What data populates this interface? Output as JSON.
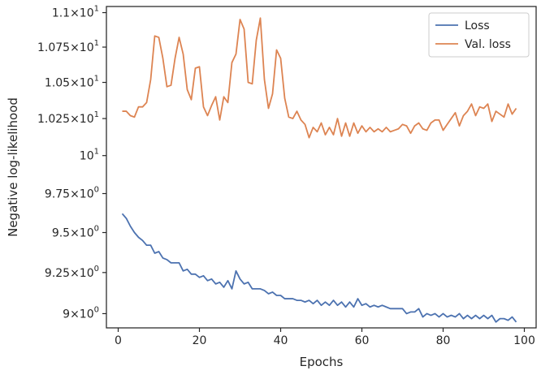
{
  "chart_data": {
    "type": "line",
    "title": "",
    "xlabel": "Epochs",
    "ylabel": "Negative log-likelihood",
    "xlim": [
      -2.9,
      102.9
    ],
    "ylim": [
      8.915,
      11.045
    ],
    "yscale": "log",
    "grid": false,
    "legend_position": "top-right",
    "x_ticks": [
      0,
      20,
      40,
      60,
      80,
      100
    ],
    "y_ticks": [
      {
        "value": 9.0,
        "mantissa": "9",
        "base": "10",
        "exp": "0"
      },
      {
        "value": 9.25,
        "mantissa": "9.25",
        "base": "10",
        "exp": "0"
      },
      {
        "value": 9.5,
        "mantissa": "9.5",
        "base": "10",
        "exp": "0"
      },
      {
        "value": 9.75,
        "mantissa": "9.75",
        "base": "10",
        "exp": "0"
      },
      {
        "value": 10.0,
        "mantissa": "",
        "base": "10",
        "exp": "1"
      },
      {
        "value": 10.25,
        "mantissa": "1.025",
        "base": "10",
        "exp": "1"
      },
      {
        "value": 10.5,
        "mantissa": "1.05",
        "base": "10",
        "exp": "1"
      },
      {
        "value": 10.75,
        "mantissa": "1.075",
        "base": "10",
        "exp": "1"
      },
      {
        "value": 11.0,
        "mantissa": "1.1",
        "base": "10",
        "exp": "1"
      }
    ],
    "series": [
      {
        "name": "Loss",
        "color": "#4c72b0",
        "x": [
          1,
          2,
          3,
          4,
          5,
          6,
          7,
          8,
          9,
          10,
          11,
          12,
          13,
          14,
          15,
          16,
          17,
          18,
          19,
          20,
          21,
          22,
          23,
          24,
          25,
          26,
          27,
          28,
          29,
          30,
          31,
          32,
          33,
          34,
          35,
          36,
          37,
          38,
          39,
          40,
          41,
          42,
          43,
          44,
          45,
          46,
          47,
          48,
          49,
          50,
          51,
          52,
          53,
          54,
          55,
          56,
          57,
          58,
          59,
          60,
          61,
          62,
          63,
          64,
          65,
          66,
          67,
          68,
          69,
          70,
          71,
          72,
          73,
          74,
          75,
          76,
          77,
          78,
          79,
          80,
          81,
          82,
          83,
          84,
          85,
          86,
          87,
          88,
          89,
          90,
          91,
          92,
          93,
          94,
          95,
          96,
          97,
          98
        ],
        "values": [
          9.62,
          9.59,
          9.54,
          9.5,
          9.47,
          9.45,
          9.42,
          9.42,
          9.37,
          9.38,
          9.34,
          9.33,
          9.31,
          9.31,
          9.31,
          9.26,
          9.27,
          9.24,
          9.24,
          9.22,
          9.23,
          9.2,
          9.21,
          9.18,
          9.19,
          9.16,
          9.2,
          9.15,
          9.26,
          9.21,
          9.18,
          9.19,
          9.15,
          9.15,
          9.15,
          9.14,
          9.12,
          9.13,
          9.11,
          9.11,
          9.09,
          9.09,
          9.09,
          9.08,
          9.08,
          9.07,
          9.08,
          9.06,
          9.08,
          9.05,
          9.07,
          9.05,
          9.08,
          9.05,
          9.07,
          9.04,
          9.07,
          9.04,
          9.09,
          9.05,
          9.06,
          9.04,
          9.05,
          9.04,
          9.05,
          9.04,
          9.03,
          9.03,
          9.03,
          9.03,
          9.0,
          9.01,
          9.01,
          9.03,
          8.98,
          9.0,
          8.99,
          9.0,
          8.98,
          9.0,
          8.98,
          8.99,
          8.98,
          9.0,
          8.97,
          8.99,
          8.97,
          8.99,
          8.97,
          8.99,
          8.97,
          8.99,
          8.95,
          8.97,
          8.97,
          8.96,
          8.98,
          8.95
        ]
      },
      {
        "name": "Val. loss",
        "color": "#dd8452",
        "x": [
          1,
          2,
          3,
          4,
          5,
          6,
          7,
          8,
          9,
          10,
          11,
          12,
          13,
          14,
          15,
          16,
          17,
          18,
          19,
          20,
          21,
          22,
          23,
          24,
          25,
          26,
          27,
          28,
          29,
          30,
          31,
          32,
          33,
          34,
          35,
          36,
          37,
          38,
          39,
          40,
          41,
          42,
          43,
          44,
          45,
          46,
          47,
          48,
          49,
          50,
          51,
          52,
          53,
          54,
          55,
          56,
          57,
          58,
          59,
          60,
          61,
          62,
          63,
          64,
          65,
          66,
          67,
          68,
          69,
          70,
          71,
          72,
          73,
          74,
          75,
          76,
          77,
          78,
          79,
          80,
          81,
          82,
          83,
          84,
          85,
          86,
          87,
          88,
          89,
          90,
          91,
          92,
          93,
          94,
          95,
          96,
          97,
          98
        ],
        "values": [
          10.3,
          10.3,
          10.27,
          10.26,
          10.33,
          10.33,
          10.36,
          10.52,
          10.83,
          10.82,
          10.67,
          10.47,
          10.48,
          10.67,
          10.82,
          10.7,
          10.45,
          10.38,
          10.6,
          10.61,
          10.33,
          10.27,
          10.34,
          10.4,
          10.24,
          10.4,
          10.36,
          10.64,
          10.7,
          10.95,
          10.88,
          10.5,
          10.49,
          10.8,
          10.96,
          10.52,
          10.32,
          10.42,
          10.73,
          10.67,
          10.39,
          10.26,
          10.25,
          10.3,
          10.24,
          10.21,
          10.12,
          10.19,
          10.16,
          10.22,
          10.14,
          10.19,
          10.14,
          10.25,
          10.13,
          10.22,
          10.13,
          10.22,
          10.15,
          10.2,
          10.16,
          10.19,
          10.16,
          10.18,
          10.16,
          10.19,
          10.16,
          10.17,
          10.18,
          10.21,
          10.2,
          10.15,
          10.2,
          10.22,
          10.18,
          10.17,
          10.22,
          10.24,
          10.24,
          10.17,
          10.21,
          10.25,
          10.29,
          10.2,
          10.27,
          10.3,
          10.35,
          10.27,
          10.33,
          10.32,
          10.35,
          10.23,
          10.3,
          10.28,
          10.26,
          10.35,
          10.28,
          10.32
        ]
      }
    ]
  }
}
